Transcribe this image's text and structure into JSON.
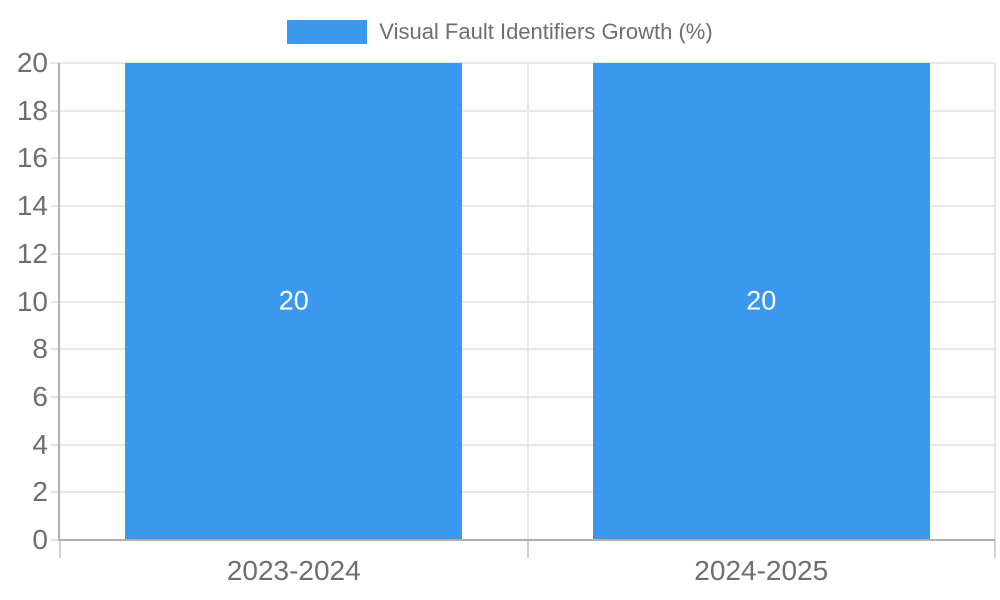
{
  "legend": {
    "label": "Visual Fault Identifiers Growth (%)"
  },
  "chart_data": {
    "type": "bar",
    "title": "",
    "categories": [
      "2023-2024",
      "2024-2025"
    ],
    "series": [
      {
        "name": "Visual Fault Identifiers Growth (%)",
        "values": [
          20,
          20
        ],
        "data_labels": [
          "20",
          "20"
        ]
      }
    ],
    "xlabel": "",
    "ylabel": "",
    "ylim": [
      0,
      20
    ],
    "y_tick_step": 2,
    "y_ticks": [
      0,
      2,
      4,
      6,
      8,
      10,
      12,
      14,
      16,
      18,
      20
    ],
    "grid": true,
    "legend_position": "top",
    "colors": {
      "bar": "#3a99ee",
      "grid": "#e7e7e7",
      "tick_mark": "#d2d2d2",
      "axis_border": "#afafaf",
      "tick_label": "#6e6e6e",
      "bar_label": "#ffffff",
      "background": "#ffffff"
    }
  }
}
